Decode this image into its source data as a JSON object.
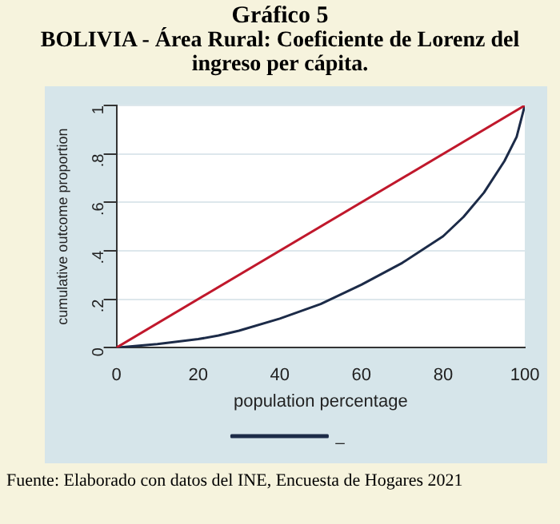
{
  "chart_data": {
    "type": "line",
    "title": "Gráfico 5",
    "subtitle": "BOLIVIA - Área Rural: Coeficiente de Lorenz del ingreso per cápita.",
    "xlabel": "population percentage",
    "ylabel": "cumulative outcome proportion",
    "annotations": [
      "Fuente: Elaborado con datos del INE, Encuesta de Hogares 2021"
    ],
    "series": [
      {
        "color": "#c0182c",
        "x": [
          0,
          100
        ],
        "values": [
          0,
          1
        ]
      },
      {
        "name": "_",
        "color": "#1c2b48",
        "x": [
          0,
          10,
          20,
          25,
          30,
          40,
          50,
          60,
          70,
          80,
          85,
          90,
          95,
          98,
          100
        ],
        "values": [
          0,
          0.015,
          0.035,
          0.05,
          0.07,
          0.12,
          0.18,
          0.26,
          0.35,
          0.46,
          0.54,
          0.64,
          0.77,
          0.87,
          1
        ]
      }
    ],
    "xlim": [
      0,
      100
    ],
    "xticks": [
      0,
      20,
      40,
      60,
      80,
      100
    ],
    "ylim": [
      0,
      1
    ],
    "yticks": [
      0,
      {
        "value": 0.2,
        "label": ".2"
      },
      {
        "value": 0.4,
        "label": ".4"
      },
      {
        "value": 0.6,
        "label": ".6"
      },
      {
        "value": 0.8,
        "label": ".8"
      },
      1
    ],
    "grid": "y",
    "legend": "bottom",
    "marker": "none",
    "line_style": "solid"
  }
}
